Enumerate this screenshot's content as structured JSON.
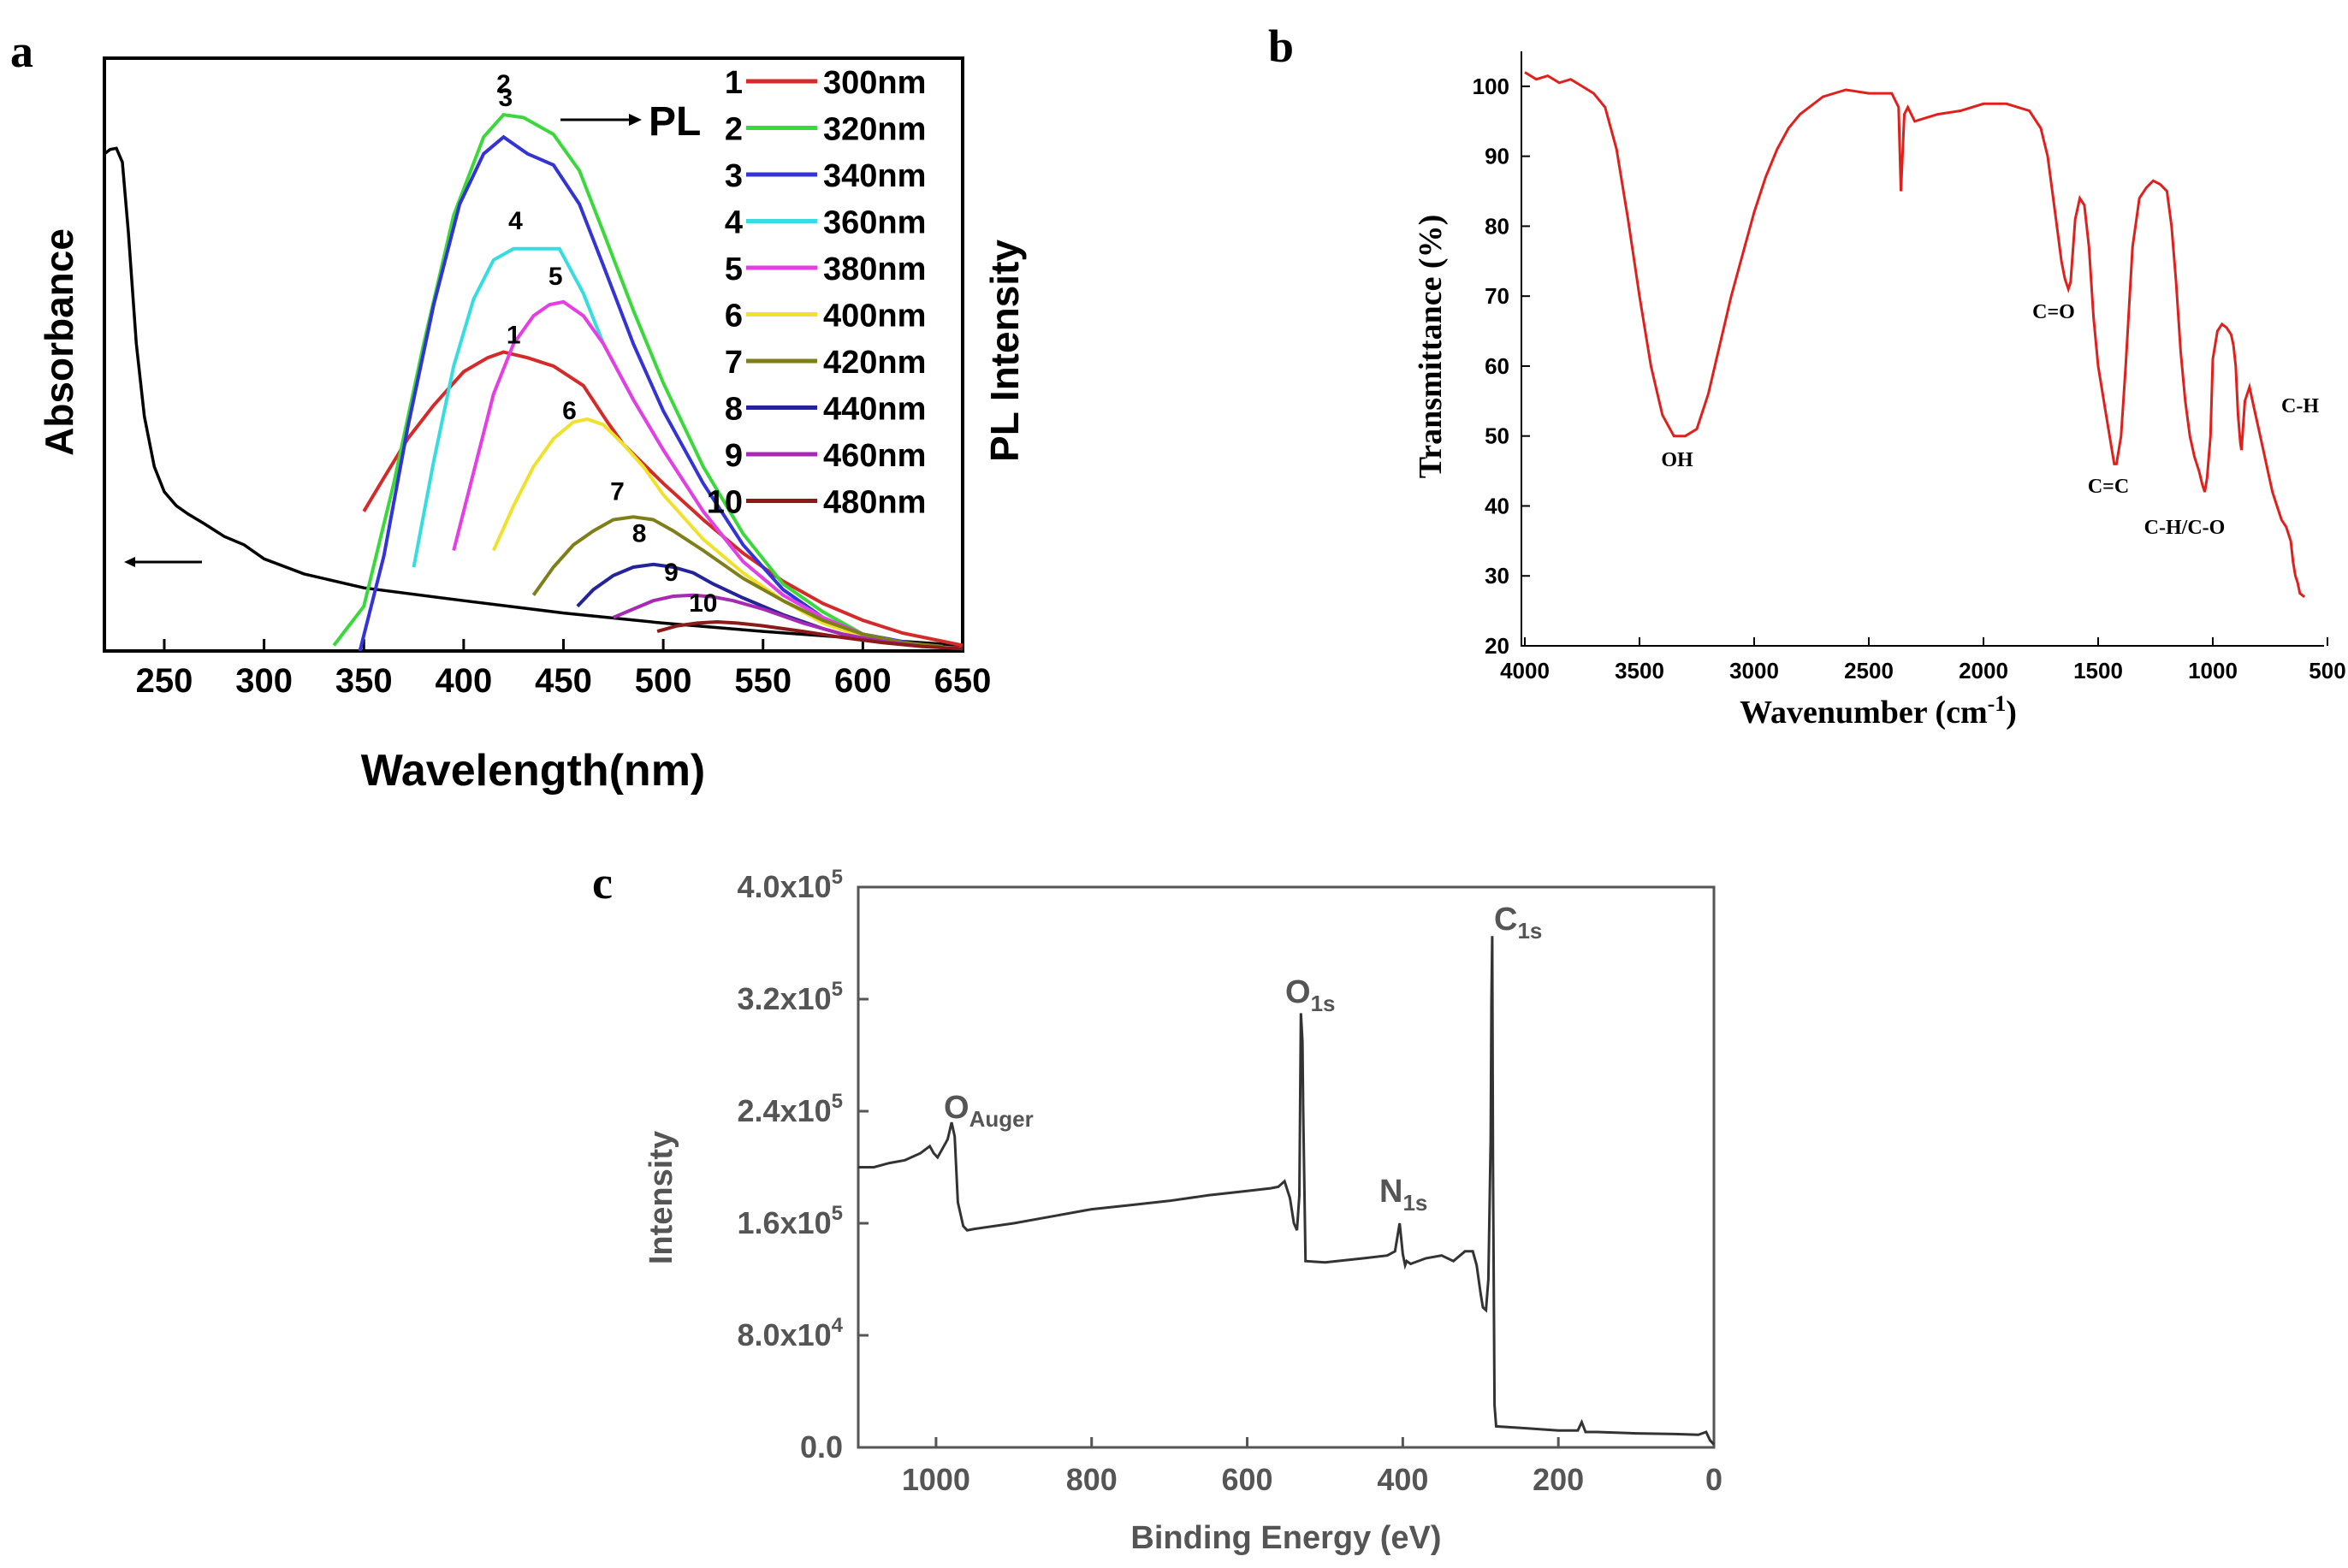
{
  "panel_labels": {
    "a": "a",
    "b": "b",
    "c": "c"
  },
  "pl_arrow_label": "PL",
  "chart_data": [
    {
      "type": "line",
      "panel": "a",
      "title": "",
      "xlabel": "Wavelength(nm)",
      "ylabel": "Absorbance",
      "y2label": "PL Intensity",
      "xlim": [
        220,
        650
      ],
      "ylim": [
        0,
        1
      ],
      "xticks": [
        250,
        300,
        350,
        400,
        450,
        500,
        550,
        600,
        650
      ],
      "grid": false,
      "legend_position": "top-right",
      "absorbance": {
        "name": "Absorbance",
        "color": "#000000",
        "x": [
          220,
          223,
          226,
          229,
          232,
          236,
          240,
          245,
          250,
          256,
          262,
          270,
          280,
          290,
          300,
          320,
          350,
          400,
          450,
          500,
          550,
          600,
          650
        ],
        "y": [
          0.89,
          0.898,
          0.9,
          0.875,
          0.75,
          0.55,
          0.42,
          0.33,
          0.285,
          0.26,
          0.245,
          0.228,
          0.205,
          0.19,
          0.165,
          0.138,
          0.113,
          0.09,
          0.068,
          0.05,
          0.035,
          0.022,
          0.01
        ]
      },
      "series": [
        {
          "label": "1",
          "name": "300nm",
          "color": "#d42a2a",
          "label_at": [
            425,
            0.535
          ],
          "x": [
            350,
            360,
            372,
            385,
            400,
            412,
            420,
            432,
            445,
            460,
            472,
            480,
            500,
            520,
            540,
            560,
            580,
            600,
            620,
            650
          ],
          "y": [
            0.25,
            0.31,
            0.38,
            0.44,
            0.5,
            0.525,
            0.535,
            0.525,
            0.51,
            0.475,
            0.41,
            0.37,
            0.3,
            0.235,
            0.175,
            0.125,
            0.085,
            0.055,
            0.032,
            0.01
          ]
        },
        {
          "label": "2",
          "name": "320nm",
          "color": "#3ad83a",
          "label_at": [
            420,
            0.985
          ],
          "x": [
            335,
            350,
            365,
            380,
            395,
            410,
            420,
            430,
            445,
            458,
            470,
            485,
            500,
            520,
            540,
            560,
            580,
            600,
            615
          ],
          "y": [
            0.01,
            0.08,
            0.3,
            0.55,
            0.78,
            0.92,
            0.96,
            0.955,
            0.925,
            0.86,
            0.75,
            0.61,
            0.48,
            0.33,
            0.21,
            0.12,
            0.07,
            0.03,
            0.02
          ]
        },
        {
          "label": "3",
          "name": "340nm",
          "color": "#3333d6",
          "label_at": [
            421,
            0.96
          ],
          "x": [
            348,
            360,
            372,
            385,
            398,
            410,
            420,
            432,
            445,
            458,
            470,
            485,
            500,
            520,
            540,
            560,
            580,
            600,
            630
          ],
          "y": [
            0.0,
            0.17,
            0.4,
            0.62,
            0.8,
            0.89,
            0.92,
            0.89,
            0.87,
            0.8,
            0.69,
            0.55,
            0.43,
            0.3,
            0.19,
            0.11,
            0.06,
            0.03,
            0.01
          ]
        },
        {
          "label": "4",
          "name": "360nm",
          "color": "#36dde0",
          "label_at": [
            426,
            0.74
          ],
          "x": [
            375,
            385,
            395,
            405,
            415,
            425,
            435,
            448,
            460,
            470,
            485,
            500,
            520,
            540,
            560,
            580,
            600,
            620
          ],
          "y": [
            0.15,
            0.34,
            0.51,
            0.63,
            0.7,
            0.72,
            0.72,
            0.72,
            0.64,
            0.55,
            0.45,
            0.36,
            0.25,
            0.16,
            0.1,
            0.06,
            0.03,
            0.015
          ]
        },
        {
          "label": "5",
          "name": "380nm",
          "color": "#e43ee4",
          "label_at": [
            446,
            0.64
          ],
          "x": [
            395,
            405,
            415,
            425,
            435,
            443,
            450,
            460,
            470,
            485,
            500,
            520,
            540,
            560,
            580,
            600,
            625
          ],
          "y": [
            0.18,
            0.32,
            0.46,
            0.55,
            0.6,
            0.62,
            0.625,
            0.6,
            0.55,
            0.45,
            0.36,
            0.25,
            0.16,
            0.1,
            0.06,
            0.03,
            0.01
          ]
        },
        {
          "label": "6",
          "name": "400nm",
          "color": "#f0e22c",
          "label_at": [
            453,
            0.4
          ],
          "x": [
            415,
            425,
            435,
            445,
            455,
            462,
            470,
            480,
            490,
            500,
            520,
            540,
            560,
            580,
            600,
            625
          ],
          "y": [
            0.18,
            0.26,
            0.33,
            0.38,
            0.41,
            0.415,
            0.405,
            0.37,
            0.33,
            0.28,
            0.2,
            0.14,
            0.09,
            0.05,
            0.025,
            0.01
          ]
        },
        {
          "label": "7",
          "name": "420nm",
          "color": "#7f7f1a",
          "label_at": [
            477,
            0.255
          ],
          "x": [
            435,
            445,
            455,
            465,
            475,
            485,
            495,
            505,
            520,
            540,
            560,
            580,
            600,
            620,
            640
          ],
          "y": [
            0.1,
            0.15,
            0.19,
            0.215,
            0.235,
            0.24,
            0.235,
            0.215,
            0.18,
            0.13,
            0.09,
            0.055,
            0.03,
            0.015,
            0.008
          ]
        },
        {
          "label": "8",
          "name": "440nm",
          "color": "#24249a",
          "label_at": [
            488,
            0.18
          ],
          "x": [
            457,
            465,
            475,
            485,
            495,
            505,
            515,
            525,
            540,
            560,
            580,
            600,
            625
          ],
          "y": [
            0.08,
            0.11,
            0.135,
            0.15,
            0.155,
            0.15,
            0.14,
            0.12,
            0.095,
            0.065,
            0.04,
            0.02,
            0.01
          ]
        },
        {
          "label": "9",
          "name": "460nm",
          "color": "#a62ab3",
          "label_at": [
            504,
            0.11
          ],
          "x": [
            475,
            485,
            495,
            505,
            515,
            525,
            535,
            550,
            570,
            590,
            610,
            630
          ],
          "y": [
            0.06,
            0.075,
            0.09,
            0.098,
            0.1,
            0.097,
            0.09,
            0.075,
            0.05,
            0.03,
            0.017,
            0.008
          ]
        },
        {
          "label": "10",
          "name": "480nm",
          "color": "#8b1a1a",
          "label_at": [
            520,
            0.055
          ],
          "x": [
            497,
            507,
            517,
            527,
            537,
            550,
            570,
            590,
            610,
            630,
            650
          ],
          "y": [
            0.035,
            0.045,
            0.05,
            0.052,
            0.05,
            0.045,
            0.035,
            0.024,
            0.015,
            0.008,
            0.004
          ]
        }
      ]
    },
    {
      "type": "line",
      "panel": "b",
      "title": "",
      "xlabel": "Wavenumber (cm",
      "xlabel_sup": "-1",
      "xlabel_end": ")",
      "ylabel": "Transmittance (%)",
      "xlim": [
        4000,
        500
      ],
      "ylim": [
        20,
        105
      ],
      "xticks": [
        4000,
        3500,
        3000,
        2500,
        2000,
        1500,
        1000,
        500
      ],
      "yticks": [
        20,
        30,
        40,
        50,
        60,
        70,
        80,
        90,
        100
      ],
      "grid": false,
      "color": "#e0201c",
      "x": [
        4000,
        3950,
        3900,
        3850,
        3800,
        3750,
        3700,
        3650,
        3600,
        3550,
        3500,
        3450,
        3400,
        3350,
        3300,
        3250,
        3200,
        3150,
        3100,
        3050,
        3000,
        2950,
        2900,
        2850,
        2800,
        2700,
        2600,
        2500,
        2400,
        2370,
        2360,
        2345,
        2330,
        2300,
        2200,
        2100,
        2000,
        1900,
        1800,
        1750,
        1720,
        1700,
        1680,
        1660,
        1645,
        1630,
        1620,
        1600,
        1580,
        1560,
        1540,
        1520,
        1500,
        1470,
        1450,
        1430,
        1420,
        1400,
        1380,
        1350,
        1320,
        1290,
        1260,
        1230,
        1200,
        1180,
        1160,
        1140,
        1120,
        1100,
        1080,
        1060,
        1045,
        1035,
        1025,
        1010,
        1000,
        980,
        960,
        940,
        920,
        910,
        900,
        890,
        880,
        875,
        860,
        840,
        820,
        800,
        780,
        760,
        740,
        720,
        700,
        680,
        660,
        650,
        640,
        630,
        620,
        600
      ],
      "y": [
        102,
        101,
        101.5,
        100.5,
        101,
        100,
        99,
        97,
        91,
        81,
        70,
        60,
        53,
        50,
        50,
        51,
        56,
        63,
        70,
        76,
        82,
        87,
        91,
        94,
        96,
        98.5,
        99.5,
        99,
        99,
        97,
        85,
        96,
        97,
        95,
        96,
        96.5,
        97.5,
        97.5,
        96.5,
        94,
        90,
        85,
        80,
        75,
        72.5,
        71,
        72,
        81,
        84,
        83,
        77,
        67,
        60,
        54,
        50,
        46,
        46,
        50,
        60,
        77,
        84,
        85.5,
        86.5,
        86,
        85,
        80,
        72,
        62,
        55,
        50,
        47,
        45,
        43,
        42,
        44,
        50,
        61,
        65,
        66,
        65.5,
        64.5,
        63,
        60,
        53,
        49,
        48,
        55,
        57,
        54,
        51,
        48,
        45,
        42,
        40,
        38,
        37,
        35,
        32,
        30,
        29,
        27.5,
        27
      ]
    },
    {
      "type": "line",
      "panel": "c",
      "title": "",
      "xlabel": "Binding Energy (eV)",
      "ylabel": "Intensity",
      "xlim": [
        1100,
        0
      ],
      "ylim": [
        0,
        400000
      ],
      "xticks": [
        1000,
        800,
        600,
        400,
        200,
        0
      ],
      "yticks": [
        0,
        80000,
        160000,
        240000,
        320000,
        400000
      ],
      "ytick_labels": [
        "0.0",
        "8.0x10",
        "1.6x10",
        "2.4x10",
        "3.2x10",
        "4.0x10"
      ],
      "ytick_exponents": [
        "",
        "4",
        "5",
        "5",
        "5",
        "5"
      ],
      "grid": false,
      "color": "#333333",
      "x": [
        1100,
        1080,
        1060,
        1040,
        1020,
        1008,
        1003,
        998,
        993,
        985,
        980,
        976,
        972,
        965,
        960,
        950,
        900,
        850,
        800,
        750,
        700,
        650,
        600,
        570,
        560,
        552,
        545,
        540,
        536,
        533,
        531,
        529,
        528,
        525,
        500,
        450,
        420,
        410,
        404,
        400,
        397,
        395,
        390,
        370,
        350,
        335,
        320,
        310,
        305,
        300,
        297,
        293,
        290,
        287,
        286,
        285,
        284,
        282,
        280,
        250,
        200,
        175,
        170,
        165,
        150,
        100,
        50,
        20,
        10,
        5,
        0
      ],
      "y": [
        200000,
        200000,
        203000,
        205000,
        210000,
        215000,
        210000,
        207000,
        212000,
        220000,
        232000,
        222000,
        175000,
        158000,
        155000,
        156000,
        160000,
        165000,
        170000,
        173000,
        176000,
        180000,
        183000,
        185000,
        186000,
        190000,
        178000,
        160000,
        155000,
        180000,
        310000,
        290000,
        240000,
        133000,
        132000,
        135000,
        137000,
        140000,
        160000,
        138000,
        130000,
        133000,
        131000,
        135000,
        137000,
        133000,
        140000,
        140000,
        130000,
        110000,
        100000,
        98000,
        120000,
        220000,
        320000,
        365000,
        200000,
        30000,
        15000,
        14000,
        12000,
        12000,
        18000,
        11000,
        11000,
        10000,
        9500,
        9000,
        11000,
        5000,
        2000
      ]
    }
  ],
  "panel_c_labels": {
    "o_auger": {
      "main": "O",
      "sub": "Auger"
    },
    "o1s": {
      "main": "O",
      "sub": "1s"
    },
    "n1s": {
      "main": "N",
      "sub": "1s"
    },
    "c1s": {
      "main": "C",
      "sub": "1s"
    }
  },
  "panel_b_labels": {
    "oh": "OH",
    "co": "C=O",
    "cc": "C=C",
    "ch_co": "C-H/C-O",
    "ch": "C-H"
  }
}
